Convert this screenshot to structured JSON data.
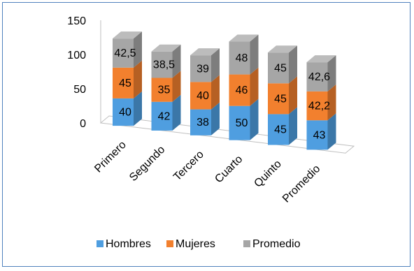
{
  "chart_data": {
    "type": "bar",
    "stacked": true,
    "style": "3d-column",
    "categories": [
      "Primero",
      "Segundo",
      "Tercero",
      "Cuarto",
      "Quinto",
      "Promedio"
    ],
    "series": [
      {
        "name": "Hombres",
        "color": "#4f9ee0",
        "values": [
          40,
          42,
          38,
          50,
          45,
          43
        ],
        "labels": [
          "40",
          "42",
          "38",
          "50",
          "45",
          "43"
        ]
      },
      {
        "name": "Mujeres",
        "color": "#f2802e",
        "values": [
          45,
          35,
          40,
          46,
          45,
          42.2
        ],
        "labels": [
          "45",
          "35",
          "40",
          "46",
          "45",
          "42,2"
        ]
      },
      {
        "name": "Promedio",
        "color": "#a6a6a6",
        "values": [
          42.5,
          38.5,
          39,
          48,
          45,
          42.6
        ],
        "labels": [
          "42,5",
          "38,5",
          "39",
          "48",
          "45",
          "42,6"
        ]
      }
    ],
    "yticks": [
      "0",
      "50",
      "100",
      "150"
    ],
    "ylim": [
      0,
      150
    ],
    "grid": false,
    "legend_position": "bottom"
  }
}
